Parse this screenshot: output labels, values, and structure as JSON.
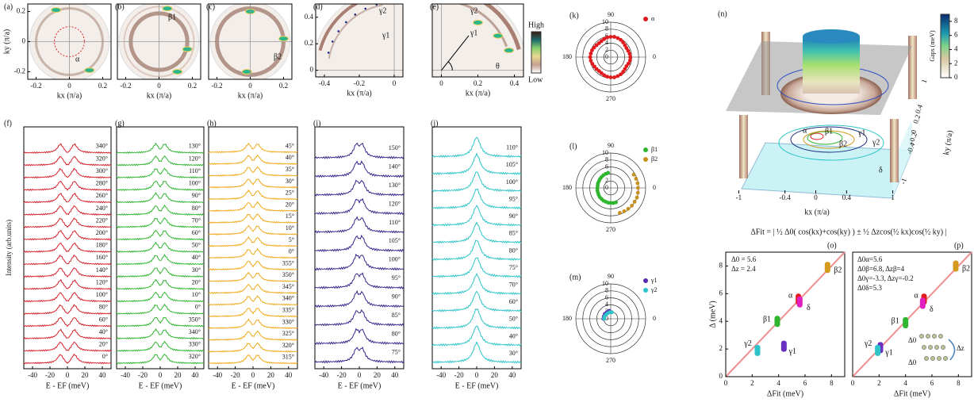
{
  "chart_data": [
    {
      "type": "map",
      "panel": "(a)",
      "x_label": "kx (π/a)",
      "y_label": "ky (π/a)",
      "xlim": [
        -0.25,
        0.25
      ],
      "ylim": [
        -0.25,
        0.25
      ],
      "xticks": [
        -0.2,
        0,
        0.2
      ],
      "yticks": [
        -0.2,
        0,
        0.2
      ],
      "annotations": [
        "α"
      ]
    },
    {
      "type": "map",
      "panel": "(b)",
      "x_label": "kx (π/a)",
      "xlim": [
        -0.25,
        0.25
      ],
      "ylim": [
        -0.25,
        0.25
      ],
      "xticks": [
        -0.2,
        0,
        0.2
      ],
      "annotations": [
        "β1"
      ]
    },
    {
      "type": "map",
      "panel": "(c)",
      "x_label": "kx (π/a)",
      "xlim": [
        -0.25,
        0.25
      ],
      "ylim": [
        -0.25,
        0.25
      ],
      "xticks": [
        -0.2,
        0,
        0.2
      ],
      "annotations": [
        "β2"
      ]
    },
    {
      "type": "map",
      "panel": "(d)",
      "x_label": "kx (π/a)",
      "xlim": [
        -0.45,
        0.05
      ],
      "ylim": [
        -0.05,
        0.5
      ],
      "xticks": [
        -0.4,
        -0.2,
        0
      ],
      "yticks": [
        0,
        0.2,
        0.4
      ],
      "annotations": [
        "γ2",
        "γ1"
      ]
    },
    {
      "type": "map",
      "panel": "(e)",
      "x_label": "kx (π/a)",
      "xlim": [
        -0.05,
        0.45
      ],
      "ylim": [
        -0.05,
        0.5
      ],
      "xticks": [
        0,
        0.2,
        0.4
      ],
      "annotations": [
        "γ2",
        "γ1",
        "θ"
      ],
      "colorbar_labels": [
        "High",
        "Low"
      ]
    },
    {
      "type": "edc",
      "panel": "(f)",
      "x_label": "E - EF (meV)",
      "y_label": "Intensity (arb.units)",
      "xlim": [
        -50,
        50
      ],
      "xticks": [
        -40,
        -20,
        0,
        20,
        40
      ],
      "color": "#d6202a",
      "labels": [
        "340°",
        "320°",
        "300°",
        "280°",
        "260°",
        "240°",
        "220°",
        "200°",
        "180°",
        "160°",
        "140°",
        "120°",
        "100°",
        "80°",
        "60°",
        "40°",
        "20°",
        "0°"
      ]
    },
    {
      "type": "edc",
      "panel": "(g)",
      "x_label": "E - EF (meV)",
      "xlim": [
        -50,
        50
      ],
      "xticks": [
        -40,
        -20,
        0,
        20,
        40
      ],
      "color": "#2fb52f",
      "labels": [
        "130°",
        "120°",
        "110°",
        "100°",
        "90°",
        "80°",
        "70°",
        "60°",
        "50°",
        "40°",
        "30°",
        "20°",
        "10°",
        "0°",
        "350°",
        "340°",
        "330°",
        "320°"
      ]
    },
    {
      "type": "edc",
      "panel": "(h)",
      "x_label": "E - EF (meV)",
      "xlim": [
        -50,
        50
      ],
      "xticks": [
        -40,
        -20,
        0,
        20,
        40
      ],
      "color": "#f0a818",
      "labels": [
        "45°",
        "40°",
        "35°",
        "30°",
        "25°",
        "20°",
        "15°",
        "10°",
        "5°",
        "0°",
        "355°",
        "350°",
        "345°",
        "340°",
        "335°",
        "330°",
        "325°",
        "320°",
        "315°"
      ]
    },
    {
      "type": "edc",
      "panel": "(i)",
      "x_label": "E - EF (meV)",
      "xlim": [
        -50,
        50
      ],
      "xticks": [
        -40,
        -20,
        0,
        20,
        40
      ],
      "color": "#3a238a",
      "labels": [
        "150°",
        "140°",
        "130°",
        "120°",
        "110°",
        "105°",
        "100°",
        "95°",
        "90°",
        "85°",
        "80°",
        "75°"
      ]
    },
    {
      "type": "edc",
      "panel": "(j)",
      "x_label": "E - EF (meV)",
      "xlim": [
        -50,
        50
      ],
      "xticks": [
        -40,
        -20,
        0,
        20,
        40
      ],
      "color": "#2cc4c8",
      "labels": [
        "110°",
        "105°",
        "100°",
        "95°",
        "90°",
        "85°",
        "80°",
        "75°",
        "70°",
        "60°",
        "50°",
        "40°",
        "30°"
      ]
    },
    {
      "type": "polar",
      "panel": "(k)",
      "rlim": [
        0,
        10
      ],
      "rticks": [
        0,
        2,
        4,
        6,
        8,
        10
      ],
      "angle_ticks": [
        90,
        180,
        270,
        0
      ],
      "series": [
        {
          "name": "α",
          "color": "#e31a1c",
          "theta": [
            0,
            10,
            20,
            30,
            40,
            50,
            60,
            70,
            80,
            90,
            100,
            110,
            120,
            130,
            140,
            150,
            160,
            170,
            180,
            190,
            200,
            210,
            220,
            230,
            240,
            250,
            260,
            270,
            280,
            290,
            300,
            310,
            320,
            330,
            340,
            350
          ],
          "r": [
            5.6,
            5.5,
            5.3,
            5.2,
            5.3,
            5.5,
            5.7,
            5.8,
            5.9,
            5.8,
            5.7,
            5.5,
            5.3,
            5.2,
            5.3,
            5.5,
            5.7,
            5.8,
            5.9,
            5.8,
            5.6,
            5.4,
            5.3,
            5.2,
            5.3,
            5.5,
            5.7,
            5.8,
            5.9,
            5.8,
            5.7,
            5.5,
            5.3,
            5.2,
            5.4,
            5.6
          ]
        }
      ]
    },
    {
      "type": "polar",
      "panel": "(l)",
      "rlim": [
        0,
        10
      ],
      "rticks": [
        0,
        2,
        4,
        6,
        8,
        10
      ],
      "angle_ticks": [
        90,
        180,
        270,
        0
      ],
      "series": [
        {
          "name": "β1",
          "color": "#2fb52f",
          "theta": [
            100,
            110,
            120,
            130,
            140,
            150,
            160,
            170,
            180,
            190,
            200,
            210,
            220,
            230,
            240,
            250,
            260,
            270,
            280,
            290
          ],
          "r": [
            4.4,
            4.3,
            4.2,
            4.1,
            4.0,
            3.9,
            3.9,
            3.8,
            3.8,
            3.9,
            3.9,
            4.0,
            4.1,
            4.1,
            4.2,
            4.2,
            4.3,
            4.3,
            4.4,
            4.4
          ]
        },
        {
          "name": "β2",
          "color": "#c8901a",
          "theta": [
            -70,
            -60,
            -50,
            -40,
            -30,
            -20,
            -10,
            0,
            10,
            20,
            30
          ],
          "r": [
            7.6,
            7.7,
            7.8,
            7.9,
            7.9,
            8.0,
            7.9,
            7.8,
            7.8,
            7.7,
            7.6
          ]
        }
      ]
    },
    {
      "type": "polar",
      "panel": "(m)",
      "rlim": [
        0,
        10
      ],
      "rticks": [
        0,
        2,
        4,
        6,
        8,
        10
      ],
      "angle_ticks": [
        90,
        180,
        270,
        0
      ],
      "series": [
        {
          "name": "γ1",
          "color": "#5a2bb0",
          "theta": [
            100,
            120,
            140,
            160,
            180
          ],
          "r": [
            2.3,
            2.2,
            2.2,
            2.1,
            2.1
          ]
        },
        {
          "name": "γ2",
          "color": "#2cc4c8",
          "theta": [
            80,
            100,
            120,
            140,
            160,
            180
          ],
          "r": [
            1.9,
            1.9,
            1.8,
            1.8,
            1.9,
            1.9
          ]
        }
      ]
    },
    {
      "type": "surface3d",
      "panel": "(n)",
      "colorbar_label": "Gaps (meV)",
      "colorbar_lim": [
        0,
        9
      ],
      "colorbar_ticks": [
        0,
        2,
        4,
        6,
        8
      ],
      "x_label": "kx (π/a)",
      "xlim": [
        -1.2,
        1.2
      ],
      "xticks": [
        -1,
        -0.4,
        0,
        0.4,
        1
      ],
      "y_label": "ky (π/a)",
      "ylim": [
        -1.2,
        1.2
      ],
      "yticks": [
        1,
        0.4,
        0.2,
        0,
        -0.2,
        -0.4,
        -1
      ],
      "annotations": [
        "α",
        "β1",
        "β2",
        "γ1",
        "γ2",
        "δ"
      ]
    },
    {
      "type": "text",
      "text": "ΔFit = | ½ Δ0( cos(kx)+cos(ky) ) ± ½ Δzcos(½ kx)cos(½ ky) |"
    },
    {
      "type": "scatter",
      "panel": "(o)",
      "x_label": "ΔFit (meV)",
      "y_label": "Δ (meV)",
      "xlim": [
        0,
        9
      ],
      "ylim": [
        0,
        9
      ],
      "xticks": [
        0,
        2,
        4,
        6,
        8
      ],
      "yticks": [
        0,
        2,
        4,
        6,
        8
      ],
      "annotations": [
        "Δ0 = 5.6",
        "Δz = 2.4"
      ],
      "series": [
        {
          "name": "α",
          "color": "#e31a1c",
          "x": [
            5.5
          ],
          "values": [
            5.6
          ]
        },
        {
          "name": "δ",
          "color": "#e020c0",
          "x": [
            5.6
          ],
          "values": [
            5.4
          ]
        },
        {
          "name": "β1",
          "color": "#2fb52f",
          "x": [
            3.9
          ],
          "values": [
            4.0
          ]
        },
        {
          "name": "β2",
          "color": "#d49a1e",
          "x": [
            7.7
          ],
          "values": [
            7.9
          ]
        },
        {
          "name": "γ1",
          "color": "#6a2fc0",
          "x": [
            4.4
          ],
          "values": [
            2.2
          ]
        },
        {
          "name": "γ2",
          "color": "#2cc4c8",
          "x": [
            2.4
          ],
          "values": [
            1.9
          ]
        }
      ]
    },
    {
      "type": "scatter",
      "panel": "(p)",
      "x_label": "ΔFit (meV)",
      "xlim": [
        0,
        9
      ],
      "ylim": [
        0,
        9
      ],
      "xticks": [
        0,
        2,
        4,
        6,
        8
      ],
      "annotations": [
        "Δ0α=5.6",
        "Δ0β=6.8, Δzβ=4",
        "Δ0γ=-3.3, Δzγ=-0.2",
        "Δ0δ=5.3",
        "Δ0",
        "Δz",
        "Δ0"
      ],
      "series": [
        {
          "name": "α",
          "color": "#e31a1c",
          "x": [
            5.4
          ],
          "values": [
            5.6
          ]
        },
        {
          "name": "δ",
          "color": "#e020c0",
          "x": [
            5.3
          ],
          "values": [
            5.3
          ]
        },
        {
          "name": "β1",
          "color": "#2fb52f",
          "x": [
            4.0
          ],
          "values": [
            3.9
          ]
        },
        {
          "name": "β2",
          "color": "#d49a1e",
          "x": [
            7.8
          ],
          "values": [
            8.0
          ]
        },
        {
          "name": "γ1",
          "color": "#6a2fc0",
          "x": [
            2.1
          ],
          "values": [
            2.1
          ]
        },
        {
          "name": "γ2",
          "color": "#2cc4c8",
          "x": [
            1.9
          ],
          "values": [
            1.9
          ]
        }
      ]
    }
  ]
}
